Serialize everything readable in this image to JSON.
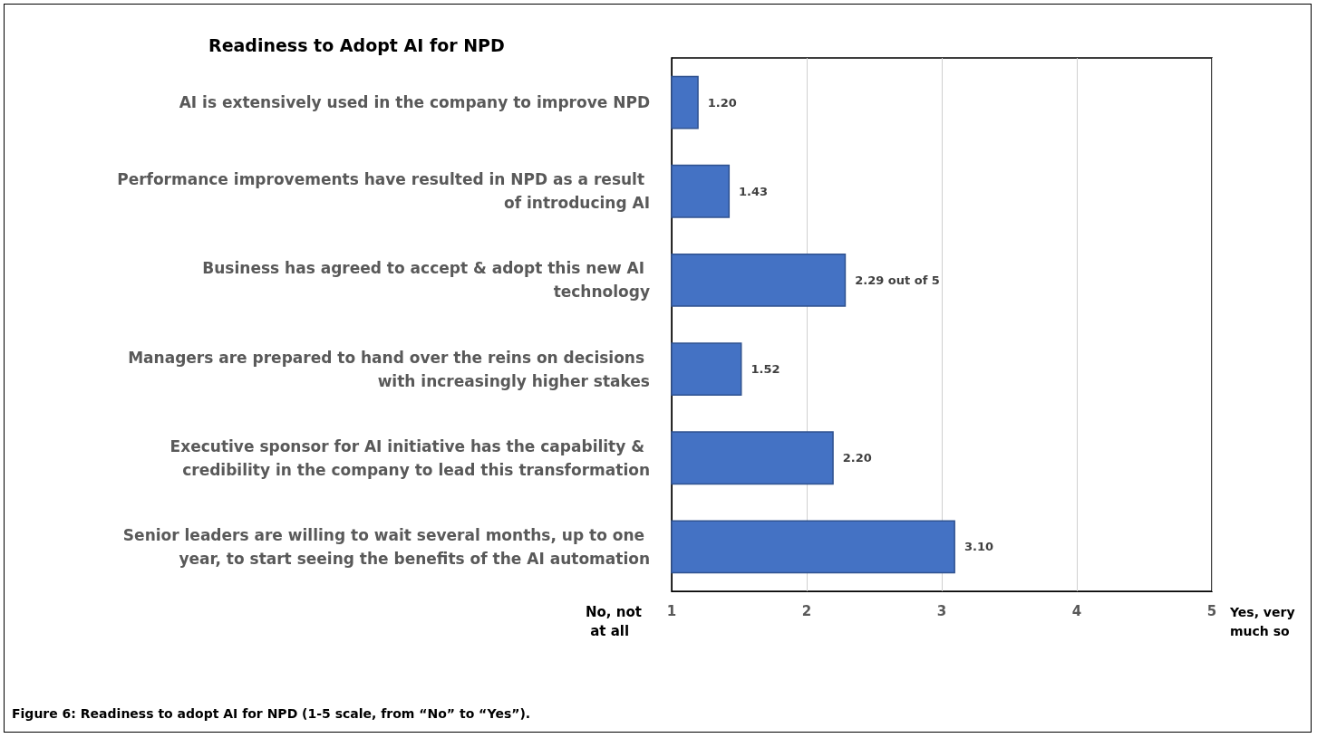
{
  "chart_data": {
    "type": "bar",
    "orientation": "horizontal",
    "title": "Readiness to Adopt AI for NPD",
    "categories": [
      "AI is extensively used in the company to improve NPD",
      "Performance improvements have resulted in NPD as a result of introducing AI",
      "Business has agreed to accept & adopt this new AI technology",
      "Managers are prepared to hand over the reins on decisions with increasingly higher stakes",
      "Executive sponsor for AI initiative has the capability & credibility in the company to lead this transformation",
      "Senior leaders are willing to wait several months, up to one year, to start seeing the benefits of the AI automation"
    ],
    "values": [
      1.2,
      1.43,
      2.29,
      1.52,
      2.2,
      3.1
    ],
    "value_labels": [
      "1.20",
      "1.43",
      "2.29 out of 5",
      "1.52",
      "2.20",
      "3.10"
    ],
    "color": "#4472c4",
    "xlim": [
      1,
      5
    ],
    "xticks": [
      1,
      2,
      3,
      4,
      5
    ],
    "grid": "x",
    "annotations": [
      "No, not at all",
      "Yes, very much so",
      "Figure 6: Readiness to adopt AI for NPD (1-5 scale, from “No” to “Yes”)."
    ]
  }
}
